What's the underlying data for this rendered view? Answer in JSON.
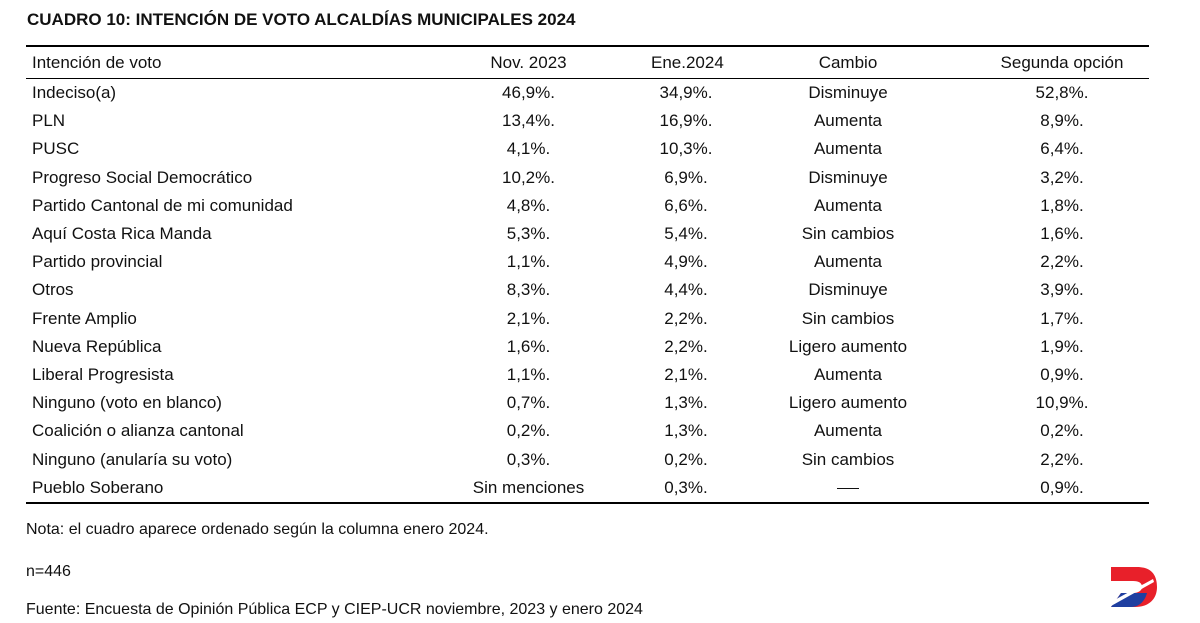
{
  "title": "CUADRO 10: INTENCIÓN DE VOTO ALCALDÍAS MUNICIPALES 2024",
  "table": {
    "headers": [
      "Intención de voto",
      "Nov. 2023",
      "Ene.2024",
      "Cambio",
      "Segunda opción"
    ],
    "rows": [
      [
        "Indeciso(a)",
        "46,9%.",
        "34,9%.",
        "Disminuye",
        "52,8%."
      ],
      [
        "PLN",
        "13,4%.",
        "16,9%.",
        "Aumenta",
        "8,9%."
      ],
      [
        "PUSC",
        "4,1%.",
        "10,3%.",
        "Aumenta",
        "6,4%."
      ],
      [
        "Progreso Social Democrático",
        "10,2%.",
        "6,9%.",
        "Disminuye",
        "3,2%."
      ],
      [
        "Partido Cantonal de mi comunidad",
        "4,8%.",
        "6,6%.",
        "Aumenta",
        "1,8%."
      ],
      [
        "Aquí Costa Rica Manda",
        "5,3%.",
        "5,4%.",
        "Sin cambios",
        "1,6%."
      ],
      [
        "Partido provincial",
        "1,1%.",
        "4,9%.",
        "Aumenta",
        "2,2%."
      ],
      [
        "Otros",
        "8,3%.",
        "4,4%.",
        "Disminuye",
        "3,9%."
      ],
      [
        "Frente Amplio",
        "2,1%.",
        "2,2%.",
        "Sin cambios",
        "1,7%."
      ],
      [
        "Nueva República",
        "1,6%.",
        "2,2%.",
        "Ligero aumento",
        "1,9%."
      ],
      [
        "Liberal Progresista",
        "1,1%.",
        "2,1%.",
        "Aumenta",
        "0,9%."
      ],
      [
        "Ninguno (voto en blanco)",
        "0,7%.",
        "1,3%.",
        "Ligero aumento",
        "10,9%."
      ],
      [
        "Coalición o alianza cantonal",
        "0,2%.",
        "1,3%.",
        "Aumenta",
        "0,2%."
      ],
      [
        "Ninguno (anularía su voto)",
        "0,3%.",
        "0,2%.",
        "Sin cambios",
        "2,2%."
      ],
      [
        "Pueblo Soberano",
        "Sin menciones",
        "0,3%.",
        "",
        "0,9%."
      ]
    ]
  },
  "notes": {
    "nota": "Nota: el cuadro aparece ordenado según la columna enero 2024.",
    "n": "n=446",
    "fuente": "Fuente: Encuesta de Opinión Pública ECP y CIEP-UCR noviembre, 2023 y enero 2024"
  },
  "logo": {
    "icon": "publisher-logo-icon",
    "colors": [
      "#e8202a",
      "#1f3fa0"
    ]
  }
}
